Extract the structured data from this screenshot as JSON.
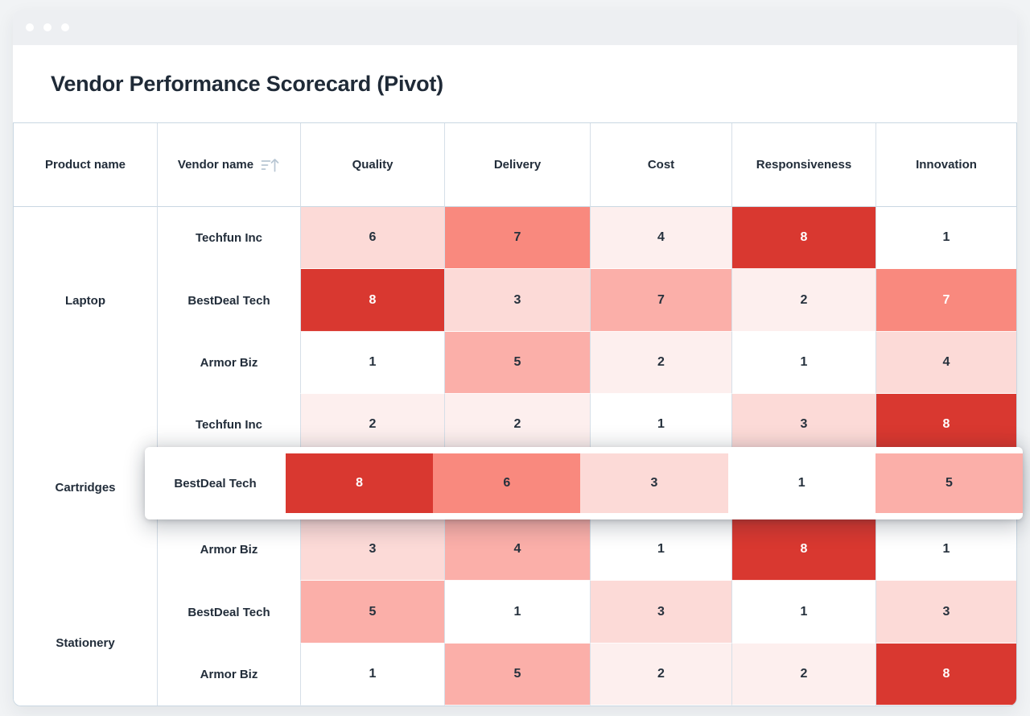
{
  "window": {
    "title": "Vendor Performance Scorecard (Pivot)",
    "traffic_dots": 3
  },
  "colors": {
    "page_bg": "#f1f3f5",
    "titlebar_bg": "#edeff2",
    "border": "#c9d7e2",
    "text_dark": "#26313d",
    "text_white": "#ffffff",
    "heat_levels": [
      "#ffffff",
      "#fdefee",
      "#fcdad7",
      "#fbafa9",
      "#f9897e",
      "#d93830"
    ]
  },
  "table": {
    "columns": [
      {
        "label": "Product name",
        "sortable": false
      },
      {
        "label": "Vendor name",
        "sortable": true,
        "icon": "sort-ascending-icon"
      },
      {
        "label": "Quality",
        "sortable": false
      },
      {
        "label": "Delivery",
        "sortable": false
      },
      {
        "label": "Cost",
        "sortable": false
      },
      {
        "label": "Responsiveness",
        "sortable": false
      },
      {
        "label": "Innovation",
        "sortable": false
      }
    ],
    "products": [
      {
        "name": "Laptop",
        "span": 3
      },
      {
        "name": "Cartridges",
        "span": 3
      },
      {
        "name": "Stationery",
        "span": 2
      }
    ],
    "rows": [
      {
        "vendor": "Techfun Inc",
        "elevated": false,
        "cells": [
          {
            "v": 6,
            "l": 2,
            "w": false
          },
          {
            "v": 7,
            "l": 4,
            "w": false
          },
          {
            "v": 4,
            "l": 1,
            "w": false
          },
          {
            "v": 8,
            "l": 5,
            "w": true
          },
          {
            "v": 1,
            "l": 0,
            "w": false
          }
        ]
      },
      {
        "vendor": "BestDeal Tech",
        "elevated": false,
        "cells": [
          {
            "v": 8,
            "l": 5,
            "w": true
          },
          {
            "v": 3,
            "l": 2,
            "w": false
          },
          {
            "v": 7,
            "l": 3,
            "w": false
          },
          {
            "v": 2,
            "l": 1,
            "w": false
          },
          {
            "v": 7,
            "l": 4,
            "w": true
          }
        ]
      },
      {
        "vendor": "Armor Biz",
        "elevated": false,
        "cells": [
          {
            "v": 1,
            "l": 0,
            "w": false
          },
          {
            "v": 5,
            "l": 3,
            "w": false
          },
          {
            "v": 2,
            "l": 1,
            "w": false
          },
          {
            "v": 1,
            "l": 0,
            "w": false
          },
          {
            "v": 4,
            "l": 2,
            "w": false
          }
        ]
      },
      {
        "vendor": "Techfun Inc",
        "elevated": false,
        "cells": [
          {
            "v": 2,
            "l": 1,
            "w": false
          },
          {
            "v": 2,
            "l": 1,
            "w": false
          },
          {
            "v": 1,
            "l": 0,
            "w": false
          },
          {
            "v": 3,
            "l": 2,
            "w": false
          },
          {
            "v": 8,
            "l": 5,
            "w": true
          }
        ]
      },
      {
        "vendor": "BestDeal Tech",
        "elevated": true,
        "cells": [
          {
            "v": 8,
            "l": 5,
            "w": true
          },
          {
            "v": 6,
            "l": 4,
            "w": false
          },
          {
            "v": 3,
            "l": 2,
            "w": false
          },
          {
            "v": 1,
            "l": 0,
            "w": false
          },
          {
            "v": 5,
            "l": 3,
            "w": false
          }
        ]
      },
      {
        "vendor": "Armor Biz",
        "elevated": false,
        "cells": [
          {
            "v": 3,
            "l": 2,
            "w": false
          },
          {
            "v": 4,
            "l": 3,
            "w": false
          },
          {
            "v": 1,
            "l": 0,
            "w": false
          },
          {
            "v": 8,
            "l": 5,
            "w": true
          },
          {
            "v": 1,
            "l": 0,
            "w": false
          }
        ]
      },
      {
        "vendor": "BestDeal Tech",
        "elevated": false,
        "cells": [
          {
            "v": 5,
            "l": 3,
            "w": false
          },
          {
            "v": 1,
            "l": 0,
            "w": false
          },
          {
            "v": 3,
            "l": 2,
            "w": false
          },
          {
            "v": 1,
            "l": 0,
            "w": false
          },
          {
            "v": 3,
            "l": 2,
            "w": false
          }
        ]
      },
      {
        "vendor": "Armor Biz",
        "elevated": false,
        "cells": [
          {
            "v": 1,
            "l": 0,
            "w": false
          },
          {
            "v": 5,
            "l": 3,
            "w": false
          },
          {
            "v": 2,
            "l": 1,
            "w": false
          },
          {
            "v": 2,
            "l": 1,
            "w": false
          },
          {
            "v": 8,
            "l": 5,
            "w": true
          }
        ]
      }
    ]
  }
}
